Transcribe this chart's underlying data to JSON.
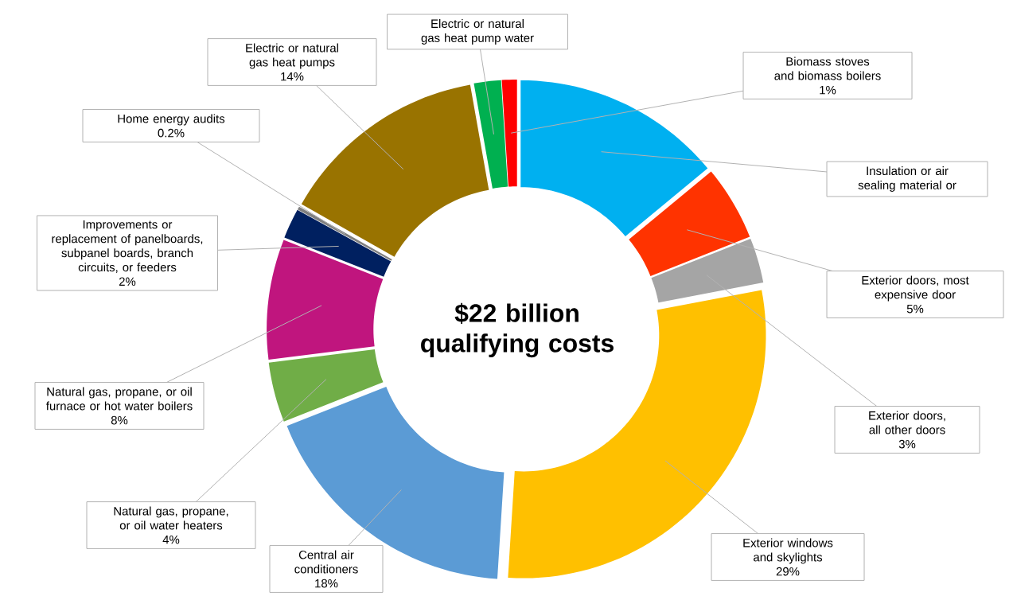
{
  "chart_data": {
    "type": "donut",
    "title": "$22 billion qualifying costs",
    "categories": [
      "Insulation or air sealing material or",
      "Exterior doors, most expensive door",
      "Exterior doors, all other doors",
      "Exterior windows and skylights",
      "Central air conditioners",
      "Natural gas, propane, or oil water heaters",
      "Natural gas, propane, or oil furnace or hot water boilers",
      "Improvements or replacement of panelboards, subpanel boards, branch circuits, or feeders",
      "Home energy audits",
      "Electric or natural gas heat pumps",
      "Electric or natural gas heat pump water",
      "Biomass stoves and biomass boilers"
    ],
    "values": [
      14,
      5,
      3,
      29,
      18,
      4,
      8,
      2,
      0.2,
      14,
      1.8,
      1
    ],
    "value_labels": [
      null,
      "5%",
      "3%",
      "29%",
      "18%",
      "4%",
      "8%",
      "2%",
      "0.2%",
      "14%",
      null,
      "1%"
    ],
    "colors": [
      "#00b0f0",
      "#ff3300",
      "#a5a5a5",
      "#ffc000",
      "#5b9bd5",
      "#70ad47",
      "#c0157e",
      "#002060",
      "#7f7f7f",
      "#997300",
      "#00b050",
      "#ff0000"
    ]
  }
}
